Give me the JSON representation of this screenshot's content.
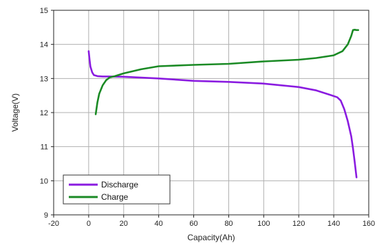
{
  "chart_data": {
    "type": "line",
    "xlabel": "Capacity(Ah)",
    "ylabel": "Voltage(V)",
    "xlim": [
      -20,
      160
    ],
    "ylim": [
      9,
      15
    ],
    "xticks": [
      -20,
      0,
      20,
      40,
      60,
      80,
      100,
      120,
      140,
      160
    ],
    "yticks": [
      9,
      10,
      11,
      12,
      13,
      14,
      15
    ],
    "grid": true,
    "legend": "bottom-left",
    "series": [
      {
        "name": "Discharge",
        "color": "#8a1be0",
        "x": [
          0,
          0.5,
          1,
          2,
          3,
          5,
          8,
          12,
          20,
          40,
          60,
          80,
          100,
          120,
          130,
          138,
          142,
          144,
          146,
          148,
          150,
          151,
          152,
          153
        ],
        "y": [
          13.8,
          13.55,
          13.35,
          13.18,
          13.1,
          13.07,
          13.06,
          13.06,
          13.05,
          13.0,
          12.93,
          12.9,
          12.85,
          12.75,
          12.65,
          12.52,
          12.45,
          12.35,
          12.1,
          11.75,
          11.3,
          10.95,
          10.55,
          10.1
        ]
      },
      {
        "name": "Charge",
        "color": "#1a8a24",
        "x": [
          4,
          5,
          6,
          8,
          10,
          12,
          15,
          20,
          30,
          40,
          60,
          80,
          100,
          120,
          130,
          140,
          145,
          148,
          150,
          151,
          152,
          153,
          154
        ],
        "y": [
          11.95,
          12.3,
          12.55,
          12.8,
          12.95,
          13.03,
          13.07,
          13.15,
          13.27,
          13.36,
          13.4,
          13.43,
          13.5,
          13.55,
          13.6,
          13.68,
          13.8,
          14.0,
          14.25,
          14.42,
          14.43,
          14.42,
          14.42
        ]
      }
    ]
  }
}
